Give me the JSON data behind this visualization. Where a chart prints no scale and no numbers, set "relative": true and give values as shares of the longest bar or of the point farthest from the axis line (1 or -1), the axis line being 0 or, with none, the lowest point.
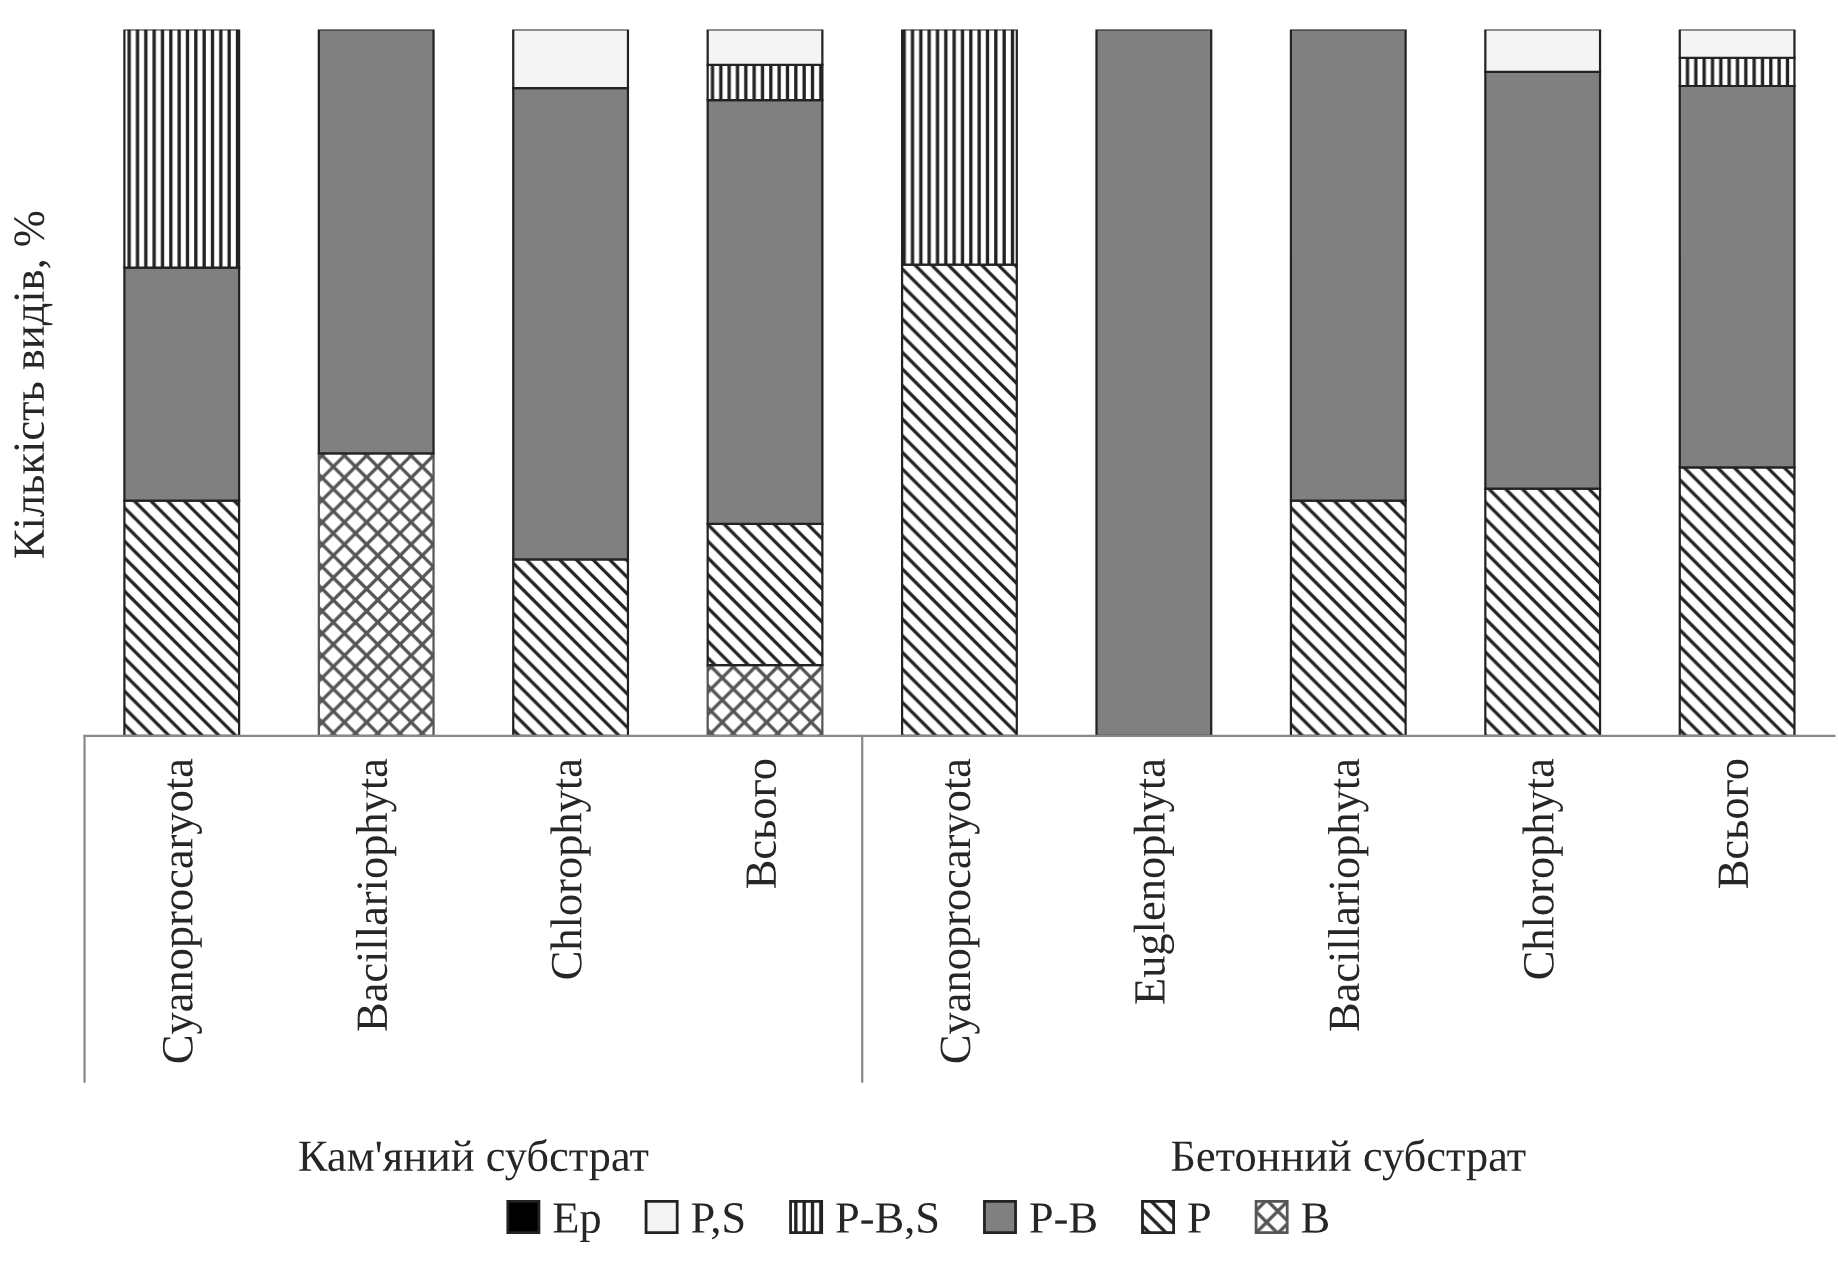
{
  "chart_data": {
    "type": "bar",
    "stacked": true,
    "relative": true,
    "ylabel": "Кількість видів, %",
    "categories": [
      "Cyanoprocaryota",
      "Bacillariophyta",
      "Chlorophyta",
      "Всього",
      "Cyanoprocaryota",
      "Euglenophyta",
      "Bacillariophyta",
      "Chlorophyta",
      "Всього"
    ],
    "series": [
      {
        "name": "B",
        "color": "#555555",
        "values": [
          0,
          0.4,
          0,
          0.1,
          0,
          0,
          0,
          0,
          0
        ]
      },
      {
        "name": "P",
        "color": "#222222",
        "values": [
          0.333,
          0,
          0.25,
          0.2,
          0.667,
          0,
          0.333,
          0.35,
          0.38
        ]
      },
      {
        "name": "P-B",
        "color": "#808080",
        "values": [
          0.33,
          0.6,
          0.667,
          0.6,
          0,
          1,
          0.667,
          0.59,
          0.54
        ]
      },
      {
        "name": "P-B,S",
        "color": "#222222",
        "values": [
          0.337,
          0,
          0,
          0.05,
          0.333,
          0,
          0,
          0,
          0.04
        ]
      },
      {
        "name": "P,S",
        "color": "#f4f4f4",
        "values": [
          0,
          0,
          0.083,
          0.05,
          0,
          0,
          0,
          0.06,
          0.04
        ]
      },
      {
        "name": "Ep",
        "color": "#000000",
        "values": [
          0,
          0,
          0,
          0,
          0,
          0,
          0,
          0,
          0
        ]
      }
    ],
    "annotations": [
      "Кам'яний субстрат",
      "Бетонний субстрат"
    ],
    "legend": "bottom"
  }
}
